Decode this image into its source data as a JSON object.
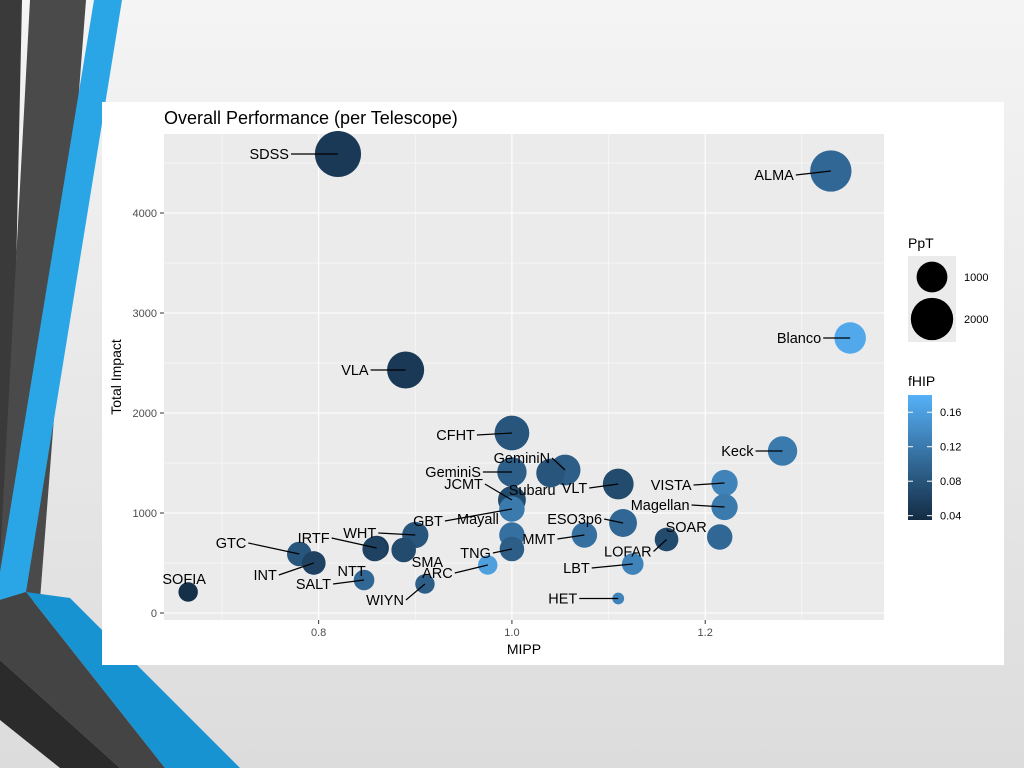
{
  "chart_data": {
    "type": "scatter",
    "title": "Overall Performance (per Telescope)",
    "xlabel": "MIPP",
    "ylabel": "Total Impact",
    "xlim": [
      0.64,
      1.385
    ],
    "ylim": [
      -70,
      4790
    ],
    "x_ticks": [
      0.8,
      1.0,
      1.2
    ],
    "x_tick_labels": [
      "0.8",
      "1.0",
      "1.2"
    ],
    "y_ticks": [
      0,
      1000,
      2000,
      3000,
      4000
    ],
    "y_tick_labels": [
      "0",
      "1000",
      "2000",
      "3000",
      "4000"
    ],
    "grid": true,
    "size_legend": {
      "title": "PpT",
      "entries": [
        {
          "label": "1000",
          "value": 1000
        },
        {
          "label": "2000",
          "value": 2000
        }
      ]
    },
    "color_legend": {
      "title": "fHIP",
      "range": [
        0.035,
        0.18
      ],
      "colors": [
        "#132B43",
        "#56B1F7"
      ],
      "ticks": [
        0.04,
        0.08,
        0.12,
        0.16
      ],
      "tick_labels": [
        "0.04",
        "0.08",
        "0.12",
        "0.16"
      ]
    },
    "legend_position": "right",
    "points": [
      {
        "label": "SDSS",
        "x": 0.82,
        "y": 4590,
        "ppt": 2400,
        "fhip": 0.05
      },
      {
        "label": "ALMA",
        "x": 1.33,
        "y": 4420,
        "ppt": 1900,
        "fhip": 0.1
      },
      {
        "label": "Blanco",
        "x": 1.35,
        "y": 2750,
        "ppt": 1050,
        "fhip": 0.17
      },
      {
        "label": "VLA",
        "x": 0.89,
        "y": 2430,
        "ppt": 1500,
        "fhip": 0.05
      },
      {
        "label": "CFHT",
        "x": 1.0,
        "y": 1800,
        "ppt": 1300,
        "fhip": 0.08
      },
      {
        "label": "Keck",
        "x": 1.28,
        "y": 1620,
        "ppt": 900,
        "fhip": 0.12
      },
      {
        "label": "GeminiN",
        "x": 1.055,
        "y": 1430,
        "ppt": 1000,
        "fhip": 0.09
      },
      {
        "label": "GeminiS",
        "x": 1.0,
        "y": 1410,
        "ppt": 900,
        "fhip": 0.09
      },
      {
        "label": "Subaru",
        "x": 1.04,
        "y": 1400,
        "ppt": 850,
        "fhip": 0.08
      },
      {
        "label": "VLT",
        "x": 1.11,
        "y": 1290,
        "ppt": 1000,
        "fhip": 0.07
      },
      {
        "label": "VISTA",
        "x": 1.22,
        "y": 1300,
        "ppt": 700,
        "fhip": 0.13
      },
      {
        "label": "JCMT",
        "x": 1.0,
        "y": 1130,
        "ppt": 800,
        "fhip": 0.07
      },
      {
        "label": "Magellan",
        "x": 1.22,
        "y": 1060,
        "ppt": 700,
        "fhip": 0.12
      },
      {
        "label": "GBT",
        "x": 1.0,
        "y": 1040,
        "ppt": 650,
        "fhip": 0.12
      },
      {
        "label": "ESO3p6",
        "x": 1.115,
        "y": 900,
        "ppt": 800,
        "fhip": 0.1
      },
      {
        "label": "Mayall",
        "x": 1.0,
        "y": 780,
        "ppt": 650,
        "fhip": 0.11
      },
      {
        "label": "WHT",
        "x": 0.9,
        "y": 780,
        "ppt": 700,
        "fhip": 0.08
      },
      {
        "label": "SOAR",
        "x": 1.215,
        "y": 760,
        "ppt": 650,
        "fhip": 0.1
      },
      {
        "label": "MMT",
        "x": 1.075,
        "y": 780,
        "ppt": 650,
        "fhip": 0.11
      },
      {
        "label": "LOFAR",
        "x": 1.16,
        "y": 735,
        "ppt": 550,
        "fhip": 0.07
      },
      {
        "label": "IRTF",
        "x": 0.86,
        "y": 650,
        "ppt": 600,
        "fhip": 0.05
      },
      {
        "label": "NTT",
        "x": 0.858,
        "y": 640,
        "ppt": 600,
        "fhip": 0.06
      },
      {
        "label": "SMA",
        "x": 0.888,
        "y": 630,
        "ppt": 600,
        "fhip": 0.07
      },
      {
        "label": "TNG",
        "x": 1.0,
        "y": 640,
        "ppt": 600,
        "fhip": 0.09
      },
      {
        "label": "GTC",
        "x": 0.78,
        "y": 590,
        "ppt": 600,
        "fhip": 0.08
      },
      {
        "label": "INT",
        "x": 0.795,
        "y": 500,
        "ppt": 550,
        "fhip": 0.06
      },
      {
        "label": "LBT",
        "x": 1.125,
        "y": 490,
        "ppt": 450,
        "fhip": 0.13
      },
      {
        "label": "ARC",
        "x": 0.975,
        "y": 480,
        "ppt": 350,
        "fhip": 0.16
      },
      {
        "label": "SALT",
        "x": 0.847,
        "y": 330,
        "ppt": 400,
        "fhip": 0.1
      },
      {
        "label": "WIYN",
        "x": 0.91,
        "y": 290,
        "ppt": 350,
        "fhip": 0.09
      },
      {
        "label": "SOFIA",
        "x": 0.665,
        "y": 210,
        "ppt": 350,
        "fhip": 0.04
      },
      {
        "label": "HET",
        "x": 1.11,
        "y": 145,
        "ppt": 100,
        "fhip": 0.13
      }
    ]
  }
}
